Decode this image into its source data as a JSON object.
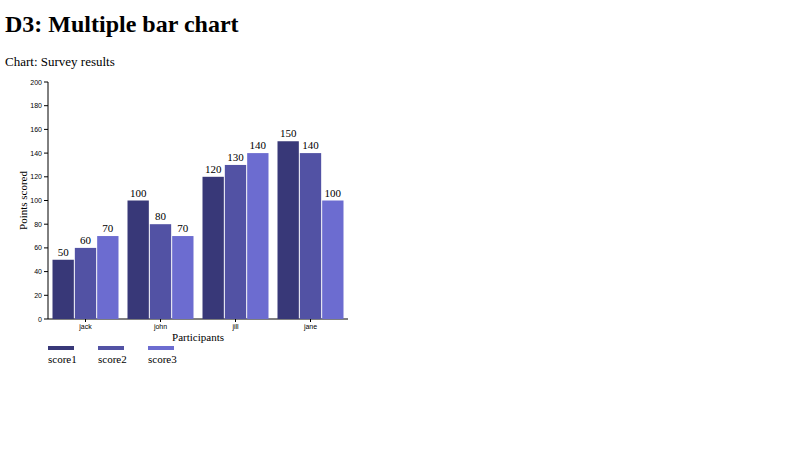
{
  "heading": "D3: Multiple bar chart",
  "chart_data": {
    "type": "bar",
    "title": "Chart: Survey results",
    "x_label": "Participants",
    "y_label": "Points scored",
    "categories": [
      "jack",
      "john",
      "jill",
      "jane"
    ],
    "series": [
      {
        "name": "score1",
        "color": "#383878",
        "values": [
          50,
          100,
          120,
          150
        ]
      },
      {
        "name": "score2",
        "color": "#5252a4",
        "values": [
          60,
          80,
          130,
          140
        ]
      },
      {
        "name": "score3",
        "color": "#6c6cd0",
        "values": [
          70,
          70,
          140,
          100
        ]
      }
    ],
    "ylim": [
      0,
      200
    ],
    "yticks": [
      0,
      20,
      40,
      60,
      80,
      100,
      120,
      140,
      160,
      180,
      200
    ],
    "grid": false,
    "data_labels": true,
    "legend": "bottom-left"
  }
}
